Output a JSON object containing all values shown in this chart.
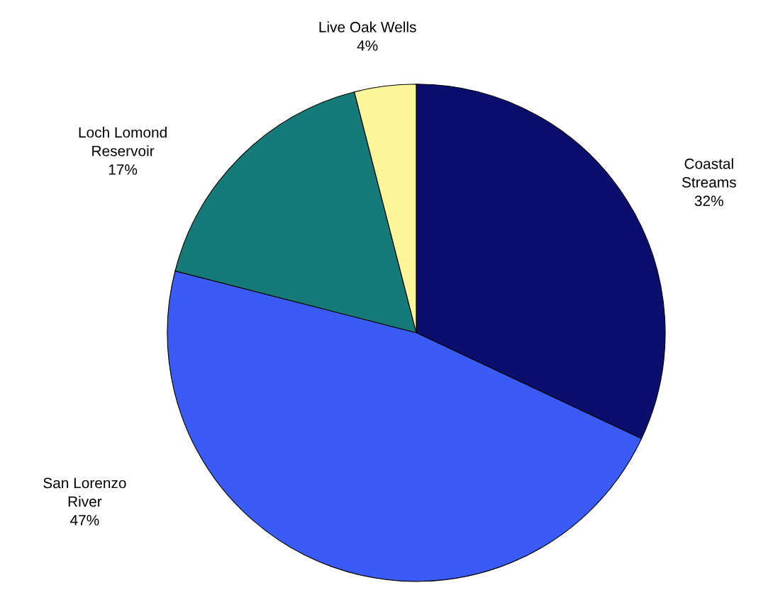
{
  "chart_data": {
    "type": "pie",
    "categories": [
      "Coastal\nStreams",
      "San Lorenzo\nRiver",
      "Loch Lomond\nReservoir",
      "Live Oak Wells"
    ],
    "values": [
      32,
      47,
      17,
      4
    ],
    "value_labels": [
      "32%",
      "47%",
      "17%",
      "4%"
    ],
    "colors": [
      "#0a0f6e",
      "#3a5cf5",
      "#167a78",
      "#fdf59a"
    ]
  }
}
